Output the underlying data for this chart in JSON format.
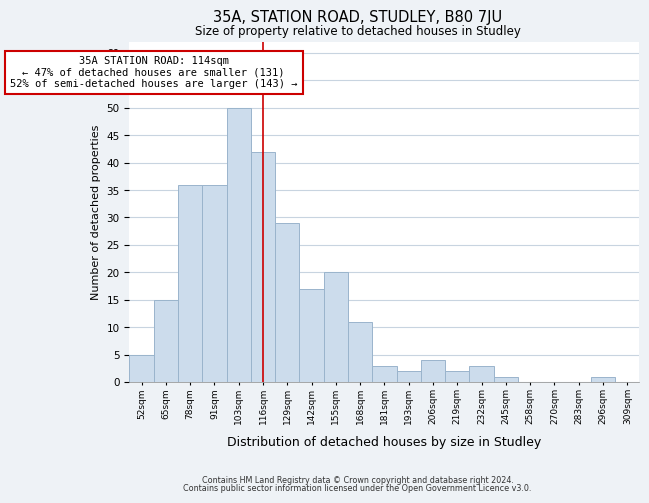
{
  "title": "35A, STATION ROAD, STUDLEY, B80 7JU",
  "subtitle": "Size of property relative to detached houses in Studley",
  "xlabel": "Distribution of detached houses by size in Studley",
  "ylabel": "Number of detached properties",
  "bin_labels": [
    "52sqm",
    "65sqm",
    "78sqm",
    "91sqm",
    "103sqm",
    "116sqm",
    "129sqm",
    "142sqm",
    "155sqm",
    "168sqm",
    "181sqm",
    "193sqm",
    "206sqm",
    "219sqm",
    "232sqm",
    "245sqm",
    "258sqm",
    "270sqm",
    "283sqm",
    "296sqm",
    "309sqm"
  ],
  "bar_values": [
    5,
    15,
    36,
    36,
    50,
    42,
    29,
    17,
    20,
    11,
    3,
    2,
    4,
    2,
    3,
    1,
    0,
    0,
    0,
    1,
    0
  ],
  "bar_color": "#ccdcec",
  "bar_edge_color": "#9ab4cc",
  "vline_x_idx": 5,
  "vline_color": "#cc0000",
  "annotation_text": "35A STATION ROAD: 114sqm\n← 47% of detached houses are smaller (131)\n52% of semi-detached houses are larger (143) →",
  "annotation_box_color": "#ffffff",
  "annotation_box_edge": "#cc0000",
  "ylim": [
    0,
    62
  ],
  "yticks": [
    0,
    5,
    10,
    15,
    20,
    25,
    30,
    35,
    40,
    45,
    50,
    55,
    60
  ],
  "footer1": "Contains HM Land Registry data © Crown copyright and database right 2024.",
  "footer2": "Contains public sector information licensed under the Open Government Licence v3.0.",
  "bg_color": "#eef2f6",
  "plot_bg_color": "#ffffff",
  "grid_color": "#c8d4e0"
}
